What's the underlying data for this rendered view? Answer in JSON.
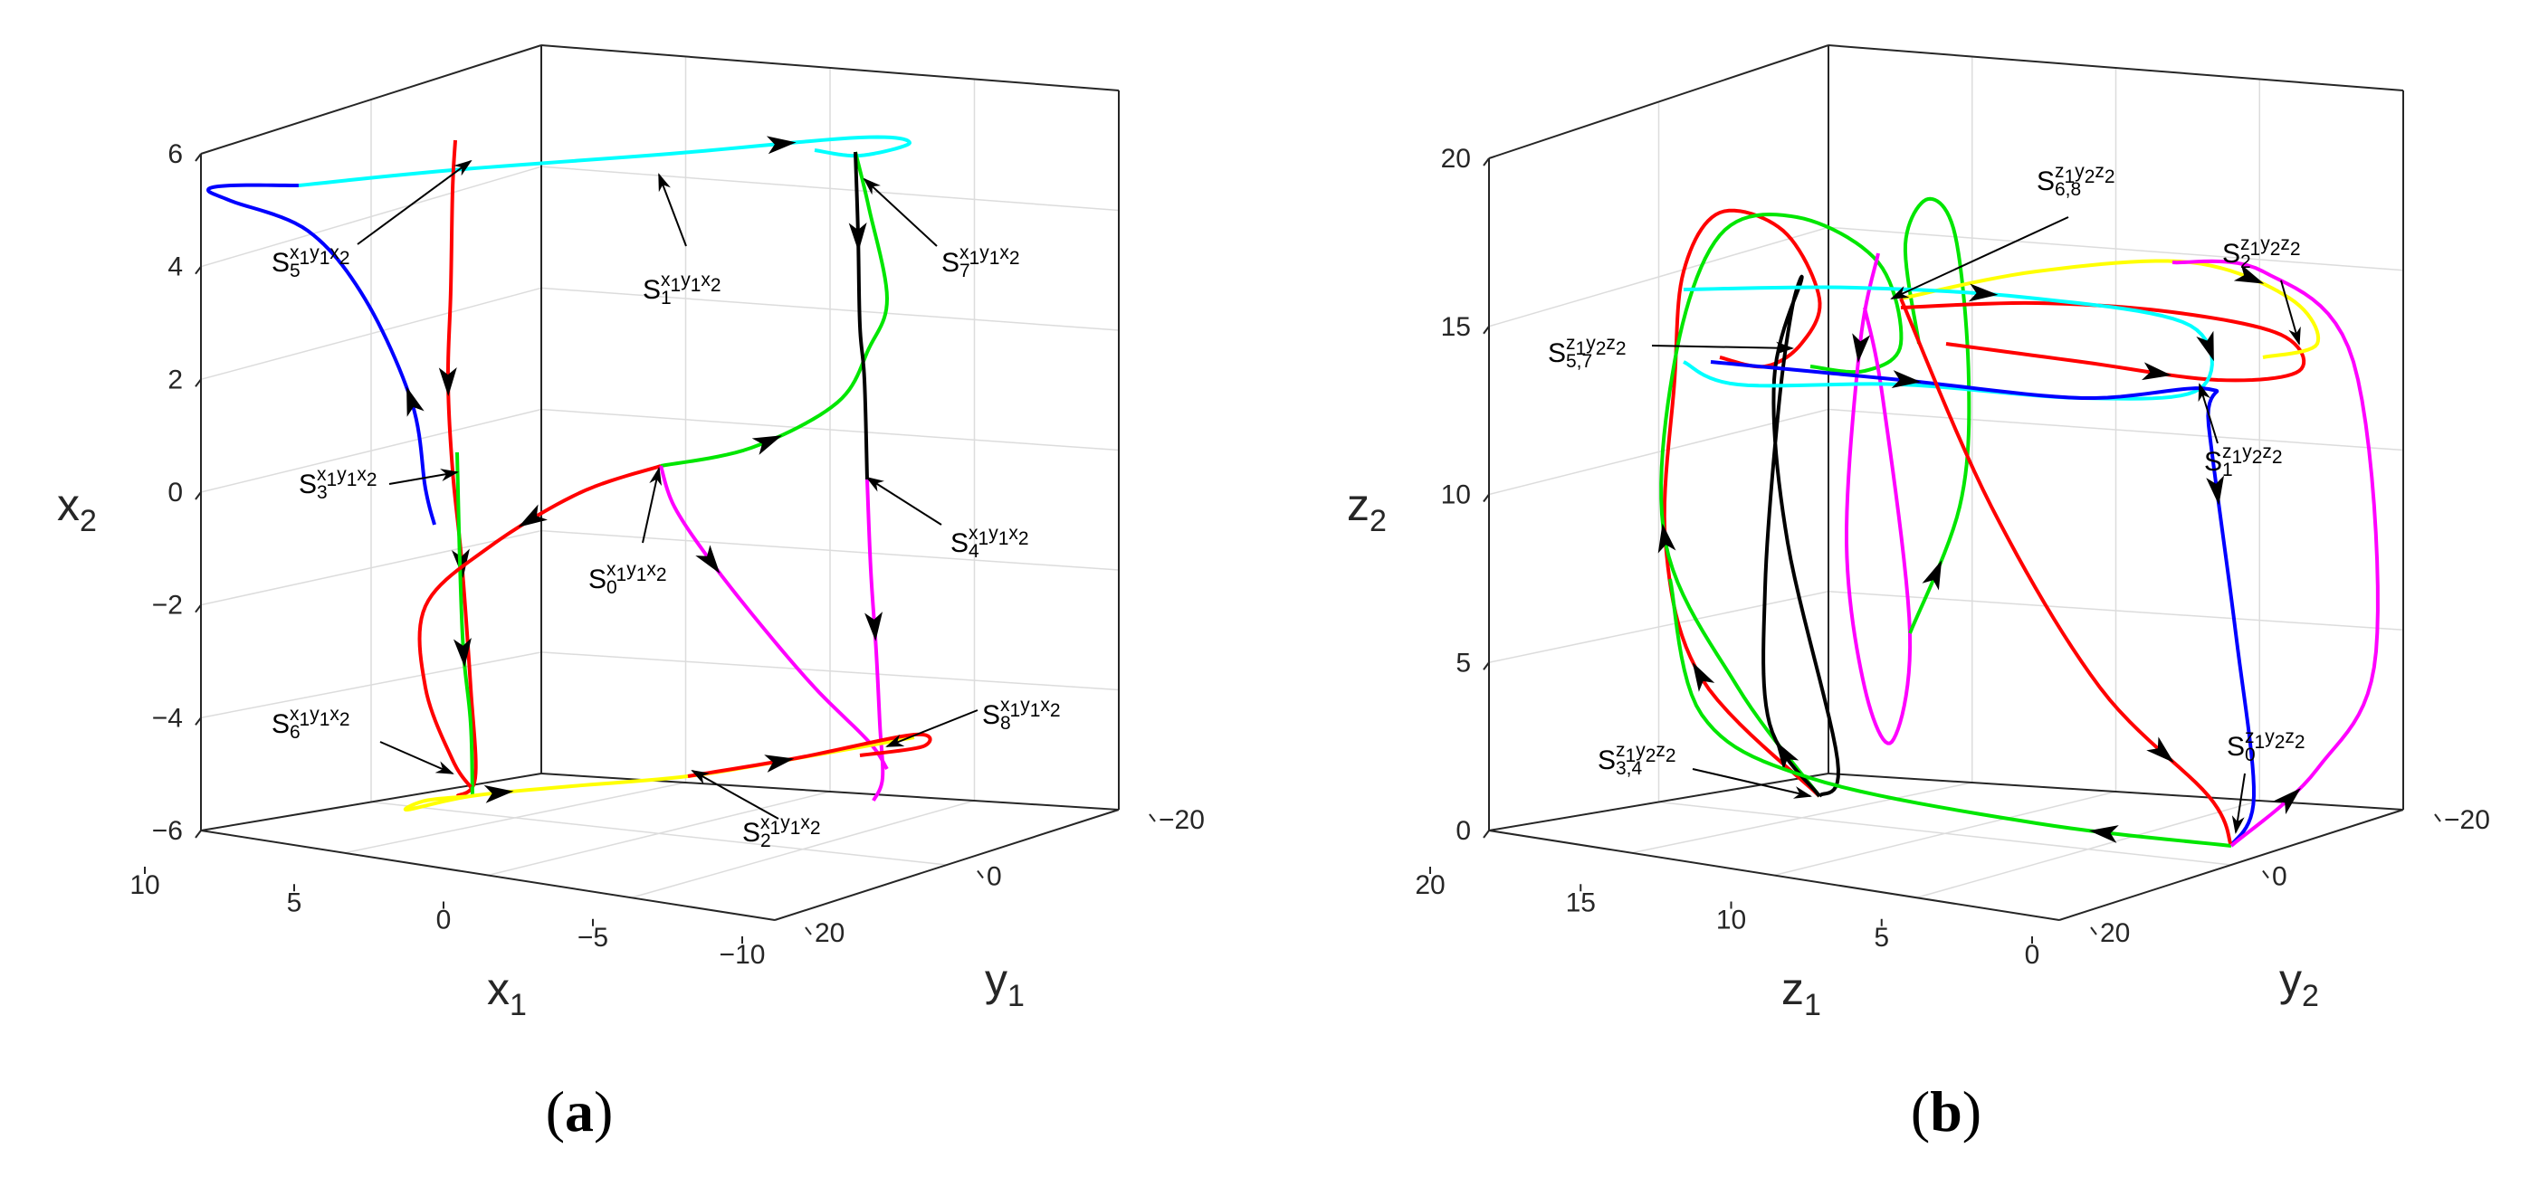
{
  "colors": {
    "axis": "#262626",
    "grid": "#dcdcdc",
    "red": "#ff0000",
    "blue": "#0000ff",
    "green": "#00e600",
    "magenta": "#ff00ff",
    "cyan": "#00ffff",
    "yellow": "#ffff00",
    "black": "#000000"
  },
  "chart_data": [
    {
      "id": "a",
      "type": "line",
      "dimensions": 3,
      "panel_label": {
        "open": "(",
        "letter": "a",
        "close": ")"
      },
      "axes": {
        "x": {
          "name": "x",
          "sub": "1",
          "ticks": [
            "10",
            "5",
            "0",
            "−5",
            "−10"
          ],
          "range": [
            10,
            -10
          ]
        },
        "y": {
          "name": "y",
          "sub": "1",
          "ticks": [
            "20",
            "0",
            "−20"
          ],
          "range": [
            20,
            -20
          ]
        },
        "z": {
          "name": "x",
          "sub": "2",
          "ticks": [
            "6",
            "4",
            "2",
            "0",
            "−2",
            "−4",
            "−6"
          ],
          "range": [
            6,
            -6
          ]
        }
      },
      "grid": true,
      "series_colors": [
        "red",
        "blue",
        "green",
        "magenta",
        "cyan",
        "yellow",
        "black"
      ],
      "annotations": [
        {
          "base": "S",
          "sup": "x",
          "supsub": "1",
          "mid": "y",
          "midsub": "1",
          "tail": "x",
          "tailsub": "2",
          "sub": "5"
        },
        {
          "base": "S",
          "sup": "x",
          "supsub": "1",
          "mid": "y",
          "midsub": "1",
          "tail": "x",
          "tailsub": "2",
          "sub": "1"
        },
        {
          "base": "S",
          "sup": "x",
          "supsub": "1",
          "mid": "y",
          "midsub": "1",
          "tail": "x",
          "tailsub": "2",
          "sub": "7"
        },
        {
          "base": "S",
          "sup": "x",
          "supsub": "1",
          "mid": "y",
          "midsub": "1",
          "tail": "x",
          "tailsub": "2",
          "sub": "3"
        },
        {
          "base": "S",
          "sup": "x",
          "supsub": "1",
          "mid": "y",
          "midsub": "1",
          "tail": "x",
          "tailsub": "2",
          "sub": "4"
        },
        {
          "base": "S",
          "sup": "x",
          "supsub": "1",
          "mid": "y",
          "midsub": "1",
          "tail": "x",
          "tailsub": "2",
          "sub": "0"
        },
        {
          "base": "S",
          "sup": "x",
          "supsub": "1",
          "mid": "y",
          "midsub": "1",
          "tail": "x",
          "tailsub": "2",
          "sub": "8"
        },
        {
          "base": "S",
          "sup": "x",
          "supsub": "1",
          "mid": "y",
          "midsub": "1",
          "tail": "x",
          "tailsub": "2",
          "sub": "6"
        },
        {
          "base": "S",
          "sup": "x",
          "supsub": "1",
          "mid": "y",
          "midsub": "1",
          "tail": "x",
          "tailsub": "2",
          "sub": "2"
        }
      ]
    },
    {
      "id": "b",
      "type": "line",
      "dimensions": 3,
      "panel_label": {
        "open": "(",
        "letter": "b",
        "close": ")"
      },
      "axes": {
        "x": {
          "name": "z",
          "sub": "1",
          "ticks": [
            "20",
            "15",
            "10",
            "5",
            "0"
          ],
          "range": [
            20,
            0
          ]
        },
        "y": {
          "name": "y",
          "sub": "2",
          "ticks": [
            "20",
            "0",
            "−20"
          ],
          "range": [
            20,
            -20
          ]
        },
        "z": {
          "name": "z",
          "sub": "2",
          "ticks": [
            "20",
            "15",
            "10",
            "5",
            "0"
          ],
          "range": [
            20,
            0
          ]
        }
      },
      "grid": true,
      "series_colors": [
        "red",
        "blue",
        "green",
        "magenta",
        "cyan",
        "yellow",
        "black"
      ],
      "annotations": [
        {
          "base": "S",
          "sup": "z",
          "supsub": "1",
          "mid": "y",
          "midsub": "2",
          "tail": "z",
          "tailsub": "2",
          "sub": "6,8"
        },
        {
          "base": "S",
          "sup": "z",
          "supsub": "1",
          "mid": "y",
          "midsub": "2",
          "tail": "z",
          "tailsub": "2",
          "sub": "2"
        },
        {
          "base": "S",
          "sup": "z",
          "supsub": "1",
          "mid": "y",
          "midsub": "2",
          "tail": "z",
          "tailsub": "2",
          "sub": "5,7"
        },
        {
          "base": "S",
          "sup": "z",
          "supsub": "1",
          "mid": "y",
          "midsub": "2",
          "tail": "z",
          "tailsub": "2",
          "sub": "1"
        },
        {
          "base": "S",
          "sup": "z",
          "supsub": "1",
          "mid": "y",
          "midsub": "2",
          "tail": "z",
          "tailsub": "2",
          "sub": "3,4"
        },
        {
          "base": "S",
          "sup": "z",
          "supsub": "1",
          "mid": "y",
          "midsub": "2",
          "tail": "z",
          "tailsub": "2",
          "sub": "0"
        }
      ]
    }
  ]
}
